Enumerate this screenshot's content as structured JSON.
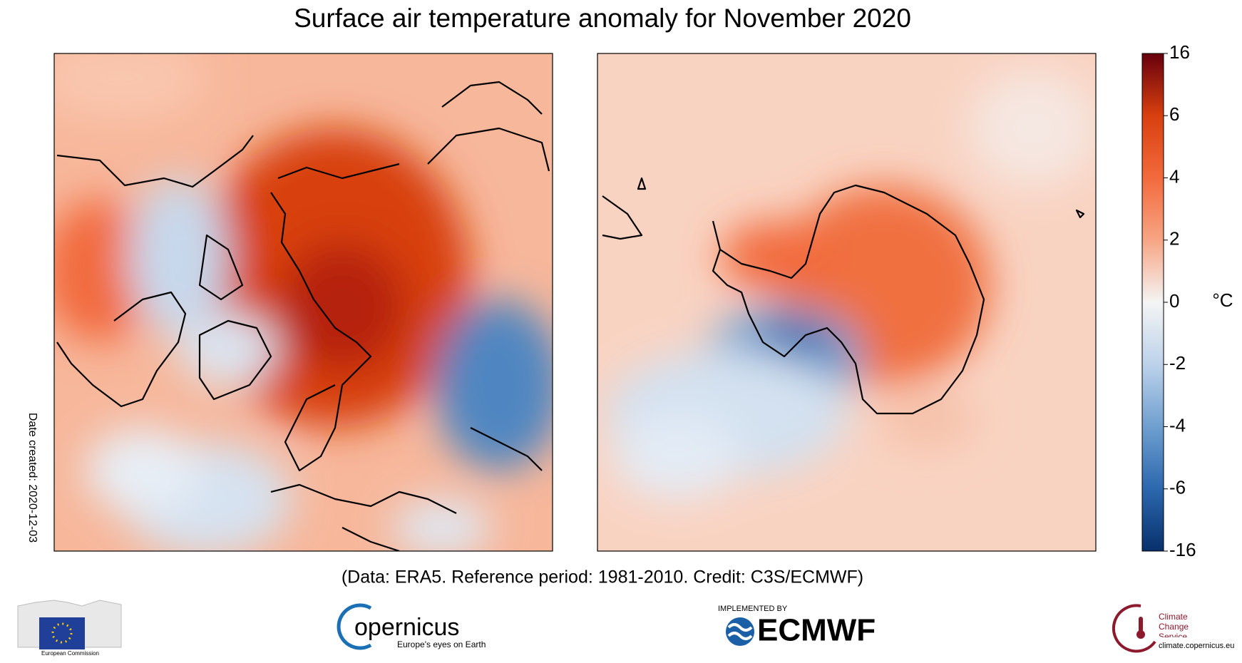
{
  "title": "Surface air temperature anomaly for November 2020",
  "footnote": "(Data: ERA5.  Reference period: 1981-2010.  Credit: C3S/ECMWF)",
  "date_created": "Date created: 2020-12-03",
  "colorbar": {
    "ticks": [
      16,
      6,
      4,
      2,
      0,
      -2,
      -4,
      -6,
      -16
    ],
    "unit": "°C",
    "colors": [
      "#67000d",
      "#d8400f",
      "#f26a3c",
      "#f7a584",
      "#f4f4f4",
      "#bcd2ea",
      "#6f9fcf",
      "#2c68ae",
      "#08306b"
    ]
  },
  "logos": {
    "eu": "European Commission",
    "copernicus": "opernicus",
    "copernicus_tagline": "Europe's eyes on Earth",
    "ecmwf_prefix": "IMPLEMENTED BY",
    "ecmwf": "ECMWF",
    "c3s": "Climate Change Service",
    "c3s_url": "climate.copernicus.eu"
  }
}
